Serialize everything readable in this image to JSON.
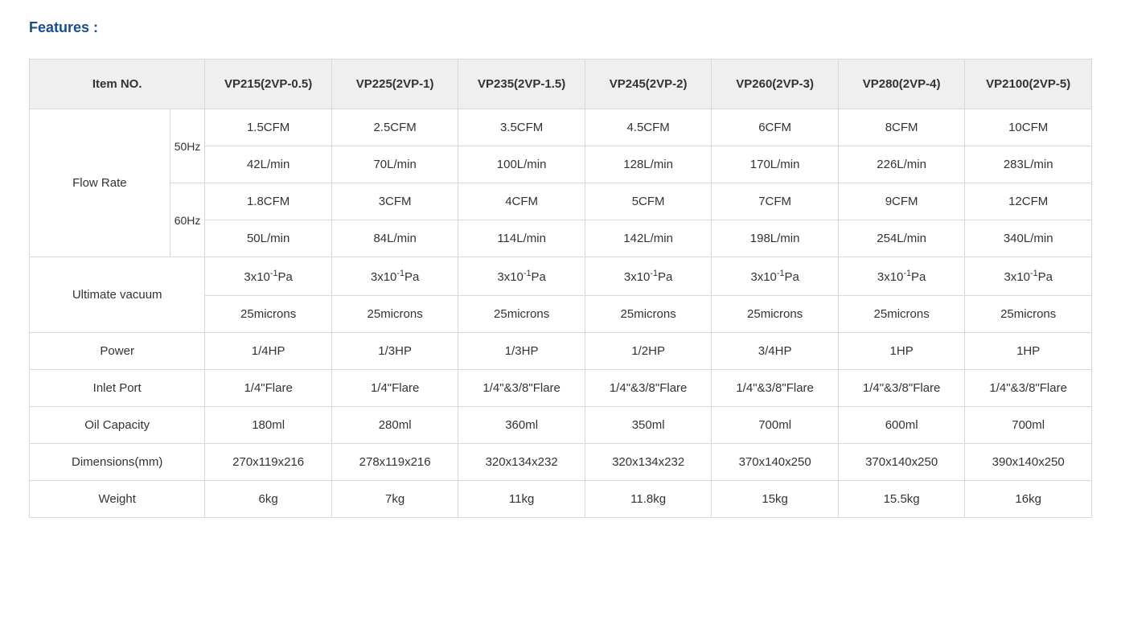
{
  "title": "Features :",
  "columns": {
    "item_no": "Item NO.",
    "models": [
      "VP215(2VP-0.5)",
      "VP225(2VP-1)",
      "VP235(2VP-1.5)",
      "VP245(2VP-2)",
      "VP260(2VP-3)",
      "VP280(2VP-4)",
      "VP2100(2VP-5)"
    ]
  },
  "flow_rate": {
    "label": "Flow Rate",
    "freq50": "50Hz",
    "freq60": "60Hz",
    "cfm50": [
      "1.5CFM",
      "2.5CFM",
      "3.5CFM",
      "4.5CFM",
      "6CFM",
      "8CFM",
      "10CFM"
    ],
    "lmin50": [
      "42L/min",
      "70L/min",
      "100L/min",
      "128L/min",
      "170L/min",
      "226L/min",
      "283L/min"
    ],
    "cfm60": [
      "1.8CFM",
      "3CFM",
      "4CFM",
      "5CFM",
      "7CFM",
      "9CFM",
      "12CFM"
    ],
    "lmin60": [
      "50L/min",
      "84L/min",
      "114L/min",
      "142L/min",
      "198L/min",
      "254L/min",
      "340L/min"
    ]
  },
  "ultimate_vacuum": {
    "label": "Ultimate vacuum",
    "pa_html": "3x10<sup>-1</sup>Pa",
    "microns": [
      "25microns",
      "25microns",
      "25microns",
      "25microns",
      "25microns",
      "25microns",
      "25microns"
    ]
  },
  "power": {
    "label": "Power",
    "values": [
      "1/4HP",
      "1/3HP",
      "1/3HP",
      "1/2HP",
      "3/4HP",
      "1HP",
      "1HP"
    ]
  },
  "inlet_port": {
    "label": "Inlet Port",
    "values": [
      "1/4\"Flare",
      "1/4\"Flare",
      "1/4\"&3/8\"Flare",
      "1/4\"&3/8\"Flare",
      "1/4\"&3/8\"Flare",
      "1/4\"&3/8\"Flare",
      "1/4\"&3/8\"Flare"
    ]
  },
  "oil_capacity": {
    "label": "Oil Capacity",
    "values": [
      "180ml",
      "280ml",
      "360ml",
      "350ml",
      "700ml",
      "600ml",
      "700ml"
    ]
  },
  "dimensions": {
    "label": "Dimensions(mm)",
    "values": [
      "270x119x216",
      "278x119x216",
      "320x134x232",
      "320x134x232",
      "370x140x250",
      "370x140x250",
      "390x140x250"
    ]
  },
  "weight": {
    "label": "Weight",
    "values": [
      "6kg",
      "7kg",
      "11kg",
      "11.8kg",
      "15kg",
      "15.5kg",
      "16kg"
    ]
  }
}
